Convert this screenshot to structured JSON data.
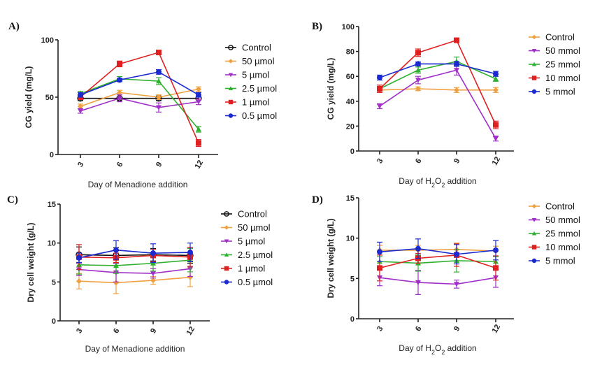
{
  "chart_data": [
    {
      "id": "A",
      "type": "line",
      "panel_label": "A)",
      "title": "",
      "xlabel": "Day of Menadione addition",
      "ylabel": "CG yield (mg/L)",
      "x": [
        3,
        6,
        9,
        12
      ],
      "x_tick_labels": [
        "3",
        "6",
        "9",
        "12"
      ],
      "ylim": [
        0,
        100
      ],
      "y_ticks": [
        0,
        50,
        100
      ],
      "grid": false,
      "legend_position": "right",
      "series": [
        {
          "name": "Control",
          "color": "#111111",
          "marker": "open-circle",
          "values": [
            49,
            49,
            49,
            49
          ],
          "errors": [
            2,
            1.5,
            2,
            1.5
          ]
        },
        {
          "name": "50 µmol",
          "color": "#f0a040",
          "marker": "diamond",
          "values": [
            42,
            54,
            50,
            57
          ],
          "errors": [
            2,
            2,
            2,
            2
          ]
        },
        {
          "name": "5 µmol",
          "color": "#a030c8",
          "marker": "triangle-down",
          "values": [
            38,
            49,
            41,
            46
          ],
          "errors": [
            2,
            3,
            4,
            2.5
          ]
        },
        {
          "name": "2.5 µmol",
          "color": "#30b030",
          "marker": "triangle-up",
          "values": [
            53,
            66,
            64,
            22
          ],
          "errors": [
            2,
            2,
            3,
            2.5
          ]
        },
        {
          "name": "1 µmol",
          "color": "#e02020",
          "marker": "square",
          "values": [
            50,
            79,
            89,
            10
          ],
          "errors": [
            2,
            2.5,
            1,
            3
          ]
        },
        {
          "name": "0.5 µmol",
          "color": "#1a2ad0",
          "marker": "circle",
          "values": [
            52,
            65,
            72,
            52
          ],
          "errors": [
            2,
            1.5,
            2,
            2
          ]
        }
      ]
    },
    {
      "id": "B",
      "type": "line",
      "panel_label": "B)",
      "title": "",
      "xlabel": "Day of H2O2 addition",
      "xlabel_parts": [
        "Day of H",
        "2",
        "O",
        "2",
        " addition"
      ],
      "ylabel": "CG yield (mg/L)",
      "x": [
        3,
        6,
        9,
        12
      ],
      "x_tick_labels": [
        "3",
        "6",
        "9",
        "12"
      ],
      "ylim": [
        0,
        100
      ],
      "y_ticks": [
        0,
        20,
        40,
        60,
        80,
        100
      ],
      "grid": false,
      "legend_position": "right",
      "series": [
        {
          "name": "Control",
          "color": "#f0a040",
          "marker": "diamond",
          "values": [
            49,
            50,
            49,
            49
          ],
          "errors": [
            2,
            1.5,
            2,
            2
          ]
        },
        {
          "name": "50 mmol",
          "color": "#a030c8",
          "marker": "triangle-down",
          "values": [
            36,
            57,
            65,
            10
          ],
          "errors": [
            2,
            3,
            4,
            2
          ]
        },
        {
          "name": "25 mmol",
          "color": "#30b030",
          "marker": "triangle-up",
          "values": [
            50,
            65,
            72,
            58
          ],
          "errors": [
            2,
            2.5,
            3.5,
            2
          ]
        },
        {
          "name": "10 mmol",
          "color": "#e02020",
          "marker": "square",
          "values": [
            50,
            79,
            89,
            21
          ],
          "errors": [
            3,
            3,
            1,
            3
          ]
        },
        {
          "name": "5 mmol",
          "color": "#1a2ad0",
          "marker": "circle",
          "values": [
            59,
            70,
            70,
            62
          ],
          "errors": [
            2,
            1.5,
            2,
            2
          ]
        }
      ]
    },
    {
      "id": "C",
      "type": "line",
      "panel_label": "C)",
      "title": "",
      "xlabel": "Day of Menadione addition",
      "ylabel": "Dry cell weight (g/L)",
      "x": [
        3,
        6,
        9,
        12
      ],
      "x_tick_labels": [
        "3",
        "6",
        "9",
        "12"
      ],
      "ylim": [
        0,
        15
      ],
      "y_ticks": [
        0,
        5,
        10,
        15
      ],
      "grid": false,
      "legend_position": "right",
      "series": [
        {
          "name": "Control",
          "color": "#111111",
          "marker": "open-circle",
          "values": [
            8.5,
            8.4,
            8.5,
            8.4
          ],
          "errors": [
            1.0,
            1.0,
            0.8,
            1.0
          ]
        },
        {
          "name": "50 µmol",
          "color": "#f0a040",
          "marker": "diamond",
          "values": [
            5.1,
            4.9,
            5.2,
            5.6
          ],
          "errors": [
            1.0,
            1.4,
            0.5,
            1.2
          ]
        },
        {
          "name": "5 µmol",
          "color": "#a030c8",
          "marker": "triangle-down",
          "values": [
            6.6,
            6.2,
            6.1,
            6.7
          ],
          "errors": [
            0.8,
            1.2,
            0.6,
            1.0
          ]
        },
        {
          "name": "2.5 µmol",
          "color": "#30b030",
          "marker": "triangle-up",
          "values": [
            7.2,
            7.1,
            7.4,
            7.8
          ],
          "errors": [
            1.2,
            1.0,
            1.0,
            1.5
          ]
        },
        {
          "name": "1 µmol",
          "color": "#e02020",
          "marker": "square",
          "values": [
            8.2,
            8.1,
            8.4,
            8.2
          ],
          "errors": [
            1.6,
            0.6,
            0.8,
            1.2
          ]
        },
        {
          "name": "0.5 µmol",
          "color": "#1a2ad0",
          "marker": "circle",
          "values": [
            8.1,
            9.1,
            8.7,
            8.8
          ],
          "errors": [
            0.6,
            1.2,
            1.2,
            1.2
          ]
        }
      ]
    },
    {
      "id": "D",
      "type": "line",
      "panel_label": "D)",
      "title": "",
      "xlabel": "Day of H2O2 addition",
      "xlabel_parts": [
        "Day of H",
        "2",
        "O",
        "2",
        " addition"
      ],
      "ylabel": "Dry cell weight (g/L)",
      "x": [
        3,
        6,
        9,
        12
      ],
      "x_tick_labels": [
        "3",
        "6",
        "9",
        "12"
      ],
      "ylim": [
        0,
        15
      ],
      "y_ticks": [
        0,
        5,
        10,
        15
      ],
      "grid": false,
      "legend_position": "right",
      "series": [
        {
          "name": "Control",
          "color": "#f0a040",
          "marker": "diamond",
          "values": [
            8.5,
            8.5,
            8.6,
            8.4
          ],
          "errors": [
            0.6,
            0.6,
            0.8,
            0.6
          ]
        },
        {
          "name": "50 mmol",
          "color": "#a030c8",
          "marker": "triangle-down",
          "values": [
            5.1,
            4.5,
            4.3,
            5.1
          ],
          "errors": [
            1.0,
            1.5,
            0.5,
            1.2
          ]
        },
        {
          "name": "25 mmol",
          "color": "#30b030",
          "marker": "triangle-up",
          "values": [
            7.1,
            6.9,
            7.2,
            7.1
          ],
          "errors": [
            0.6,
            1.0,
            1.4,
            0.6
          ]
        },
        {
          "name": "10 mmol",
          "color": "#e02020",
          "marker": "square",
          "values": [
            6.3,
            7.5,
            7.9,
            6.3
          ],
          "errors": [
            1.6,
            0.6,
            1.4,
            1.5
          ]
        },
        {
          "name": "5 mmol",
          "color": "#1a2ad0",
          "marker": "circle",
          "values": [
            8.3,
            8.7,
            8.0,
            8.5
          ],
          "errors": [
            1.2,
            1.2,
            1.2,
            1.2
          ]
        }
      ]
    }
  ]
}
